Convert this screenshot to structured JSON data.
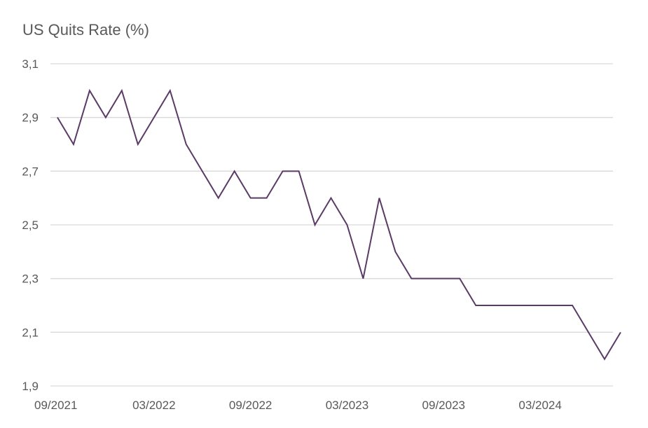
{
  "chart_data": {
    "type": "line",
    "title": "US Quits Rate (%)",
    "xlabel": "",
    "ylabel": "",
    "ylim": [
      1.9,
      3.1
    ],
    "y_ticks": [
      "3,1",
      "2,9",
      "2,7",
      "2,5",
      "2,3",
      "2,1",
      "1,9"
    ],
    "y_tick_values": [
      3.1,
      2.9,
      2.7,
      2.5,
      2.3,
      2.1,
      1.9
    ],
    "x_ticks": [
      "09/2021",
      "03/2022",
      "09/2022",
      "03/2023",
      "09/2023",
      "03/2024"
    ],
    "x_tick_index": [
      0,
      6,
      12,
      18,
      24,
      30
    ],
    "grid": true,
    "legend": "none",
    "series": [
      {
        "color": "#5b3a66",
        "x": [
          "09/2021",
          "10/2021",
          "11/2021",
          "12/2021",
          "01/2022",
          "02/2022",
          "03/2022",
          "04/2022",
          "05/2022",
          "06/2022",
          "07/2022",
          "08/2022",
          "09/2022",
          "10/2022",
          "11/2022",
          "12/2022",
          "01/2023",
          "02/2023",
          "03/2023",
          "04/2023",
          "05/2023",
          "06/2023",
          "07/2023",
          "08/2023",
          "09/2023",
          "10/2023",
          "11/2023",
          "12/2023",
          "01/2024",
          "02/2024",
          "03/2024",
          "04/2024",
          "05/2024",
          "06/2024",
          "07/2024",
          "08/2024"
        ],
        "values": [
          2.9,
          2.8,
          3.0,
          2.9,
          3.0,
          2.8,
          2.9,
          3.0,
          2.8,
          2.7,
          2.6,
          2.7,
          2.6,
          2.6,
          2.7,
          2.7,
          2.5,
          2.6,
          2.5,
          2.3,
          2.6,
          2.4,
          2.3,
          2.3,
          2.3,
          2.3,
          2.2,
          2.2,
          2.2,
          2.2,
          2.2,
          2.2,
          2.2,
          2.1,
          2.0,
          2.1
        ]
      }
    ]
  }
}
